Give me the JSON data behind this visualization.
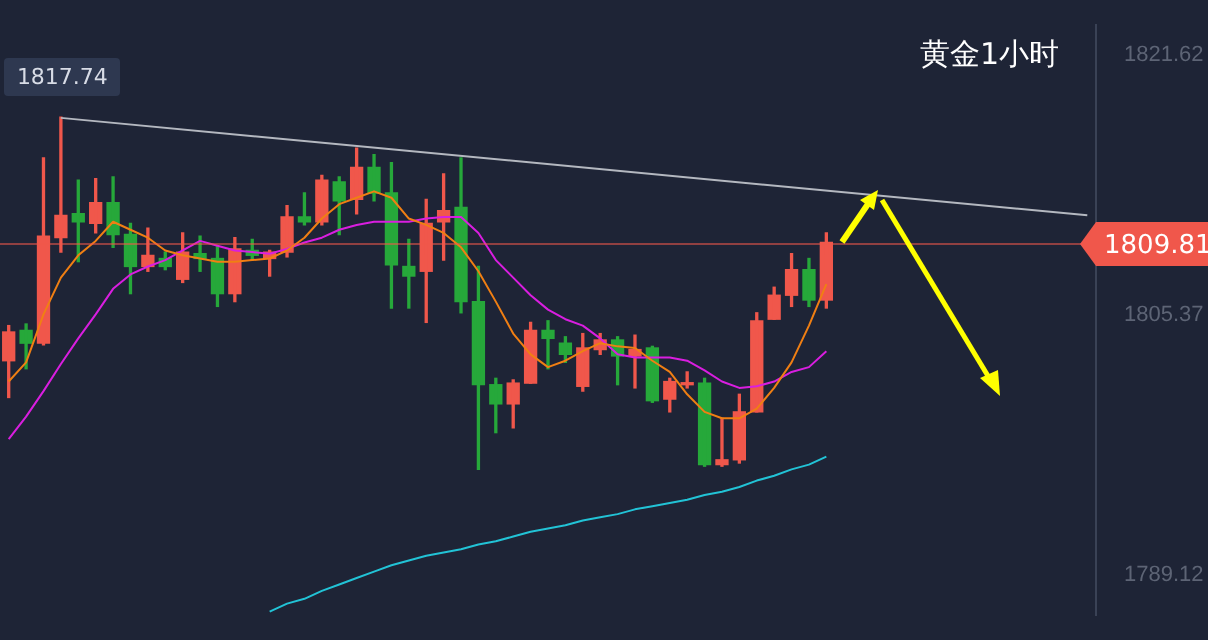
{
  "chart_data": {
    "type": "candlestick",
    "title": "黄金1小时",
    "tick_labels": "y",
    "categories": [
      null,
      null,
      null,
      null,
      null,
      null,
      null,
      null,
      null,
      null,
      null,
      null,
      null,
      null,
      null,
      null,
      null,
      null,
      null,
      null,
      null,
      null,
      null,
      null,
      null,
      null,
      null,
      null,
      null,
      null,
      null,
      null,
      null,
      null,
      null,
      null,
      null,
      null,
      null,
      null,
      null,
      null,
      null,
      null,
      null,
      null,
      null,
      null,
      null,
      null,
      null,
      null,
      null,
      null,
      null,
      null,
      null,
      null,
      null,
      null,
      null,
      null,
      null
    ],
    "ohlc": [
      [
        1802.5,
        1804.7,
        1800.2,
        1804.3
      ],
      [
        1804.4,
        1804.8,
        1802.0,
        1803.6
      ],
      [
        1803.6,
        1815.2,
        1803.5,
        1810.3
      ],
      [
        1810.2,
        1817.74,
        1809.3,
        1811.6
      ],
      [
        1811.7,
        1813.8,
        1808.7,
        1811.2
      ],
      [
        1811.1,
        1813.9,
        1810.5,
        1812.4
      ],
      [
        1812.4,
        1814.0,
        1809.6,
        1810.4
      ],
      [
        1810.4,
        1811.1,
        1806.7,
        1808.4
      ],
      [
        1808.4,
        1810.8,
        1808.1,
        1809.1
      ],
      [
        1808.9,
        1809.3,
        1808.2,
        1808.4
      ],
      [
        1807.6,
        1810.5,
        1807.4,
        1809.3
      ],
      [
        1809.2,
        1810.3,
        1808.1,
        1808.9
      ],
      [
        1808.9,
        1809.7,
        1805.9,
        1806.7
      ],
      [
        1806.7,
        1810.2,
        1806.2,
        1809.5
      ],
      [
        1809.4,
        1810.1,
        1808.8,
        1809.1
      ],
      [
        1808.9,
        1809.4,
        1807.8,
        1809.3
      ],
      [
        1809.3,
        1812.2,
        1809.0,
        1811.5
      ],
      [
        1811.5,
        1813.0,
        1811.0,
        1811.2
      ],
      [
        1811.2,
        1814.1,
        1811.0,
        1813.8
      ],
      [
        1813.7,
        1814.0,
        1810.4,
        1812.5
      ],
      [
        1812.6,
        1815.8,
        1811.7,
        1814.6
      ],
      [
        1814.6,
        1815.4,
        1812.5,
        1813.0
      ],
      [
        1813.0,
        1814.9,
        1805.8,
        1808.5
      ],
      [
        1808.4,
        1810.1,
        1805.8,
        1807.8
      ],
      [
        1808.1,
        1812.6,
        1804.9,
        1811.1
      ],
      [
        1811.2,
        1814.2,
        1808.8,
        1811.9
      ],
      [
        1812.1,
        1815.2,
        1805.5,
        1806.2
      ],
      [
        1806.2,
        1808.4,
        1795.7,
        1801.0
      ],
      [
        1801.0,
        1801.4,
        1798.0,
        1799.8
      ],
      [
        1799.8,
        1801.3,
        1798.3,
        1801.1
      ],
      [
        1801.1,
        1804.9,
        1801.1,
        1804.4
      ],
      [
        1804.4,
        1805.0,
        1802.0,
        1803.9
      ],
      [
        1803.6,
        1804.0,
        1802.4,
        1802.9
      ],
      [
        1800.9,
        1804.2,
        1800.6,
        1803.3
      ],
      [
        1803.2,
        1804.2,
        1802.9,
        1803.8
      ],
      [
        1803.8,
        1804.0,
        1801.0,
        1802.8
      ],
      [
        1802.8,
        1804.1,
        1800.8,
        1803.2
      ],
      [
        1803.3,
        1803.4,
        1799.9,
        1800.0
      ],
      [
        1800.1,
        1801.4,
        1799.3,
        1801.2
      ],
      [
        1801.0,
        1801.8,
        1800.8,
        1801.1
      ],
      [
        1801.1,
        1801.4,
        1795.9,
        1796.0
      ],
      [
        1796.0,
        1798.9,
        1795.9,
        1796.3
      ],
      [
        1796.3,
        1800.4,
        1796.1,
        1799.3
      ],
      [
        1799.3,
        1805.5,
        1799.3,
        1805.0
      ],
      [
        1805.1,
        1807.1,
        1805.1,
        1806.6
      ],
      [
        1806.6,
        1809.2,
        1805.9,
        1808.2
      ],
      [
        1808.2,
        1808.9,
        1805.9,
        1806.3
      ],
      [
        1806.3,
        1810.5,
        1805.8,
        1809.9
      ],
      null,
      null,
      null,
      null,
      null,
      null,
      null,
      null,
      null,
      null,
      null,
      null,
      null,
      null,
      null
    ],
    "colors": [
      "#f0574b",
      "#26a83a",
      "#f0574b",
      "#f0574b",
      "#26a83a",
      "#f0574b",
      "#26a83a",
      "#26a83a",
      "#f0574b",
      "#26a83a",
      "#f0574b",
      "#26a83a",
      "#26a83a",
      "#f0574b",
      "#26a83a",
      "#f0574b",
      "#f0574b",
      "#26a83a",
      "#f0574b",
      "#26a83a",
      "#f0574b",
      "#26a83a",
      "#26a83a",
      "#26a83a",
      "#f0574b",
      "#f0574b",
      "#26a83a",
      "#26a83a",
      "#26a83a",
      "#f0574b",
      "#f0574b",
      "#26a83a",
      "#26a83a",
      "#f0574b",
      "#f0574b",
      "#26a83a",
      "#f0574b",
      "#26a83a",
      "#f0574b",
      "#f0574b",
      "#26a83a",
      "#f0574b",
      "#f0574b",
      "#f0574b",
      "#f0574b",
      "#f0574b",
      "#26a83a",
      "#f0574b",
      null,
      null,
      null,
      null,
      null,
      null,
      null,
      null,
      null,
      null,
      null,
      null,
      null,
      null,
      null
    ],
    "series": [
      {
        "type": "line",
        "color": "#f07f13",
        "values": [
          1801.2,
          1802.4,
          1805.4,
          1807.7,
          1809.1,
          1810.0,
          1811.2,
          1810.7,
          1810.2,
          1809.4,
          1809.1,
          1808.9,
          1808.7,
          1808.7,
          1808.8,
          1808.9,
          1809.4,
          1810.2,
          1811.4,
          1812.3,
          1812.7,
          1813.1,
          1812.7,
          1811.4,
          1811.0,
          1810.5,
          1809.6,
          1808.1,
          1806.2,
          1804.2,
          1802.9,
          1802.1,
          1802.5,
          1803.1,
          1803.6,
          1803.4,
          1803.3,
          1802.5,
          1801.8,
          1800.4,
          1799.3,
          1798.9,
          1798.9,
          1799.5,
          1800.8,
          1802.4,
          1804.7,
          1807.3,
          null,
          null,
          null,
          null,
          null,
          null,
          null,
          null,
          null,
          null,
          null,
          null,
          null,
          null,
          null
        ]
      },
      {
        "type": "line",
        "color": "#d91ee0",
        "values": [
          1797.6,
          1799.0,
          1800.6,
          1802.3,
          1803.9,
          1805.4,
          1807.0,
          1807.9,
          1808.4,
          1808.8,
          1809.4,
          1810.0,
          1809.7,
          1809.4,
          1809.3,
          1809.2,
          1809.5,
          1809.9,
          1810.2,
          1810.7,
          1811.0,
          1811.2,
          1811.2,
          1811.2,
          1811.4,
          1811.5,
          1811.5,
          1810.5,
          1808.8,
          1807.7,
          1806.6,
          1805.7,
          1805.1,
          1804.7,
          1803.9,
          1802.9,
          1802.7,
          1802.7,
          1802.7,
          1802.5,
          1801.9,
          1801.2,
          1800.8,
          1800.9,
          1801.2,
          1801.8,
          1802.1,
          1803.1,
          null,
          null,
          null,
          null,
          null,
          null,
          null,
          null,
          null,
          null,
          null,
          null,
          null,
          null,
          null
        ]
      },
      {
        "type": "line",
        "color": "#22c3d6",
        "values": [
          null,
          null,
          null,
          null,
          null,
          null,
          null,
          null,
          null,
          null,
          null,
          null,
          null,
          null,
          null,
          1786.8,
          1787.3,
          1787.6,
          1788.1,
          1788.5,
          1788.9,
          1789.3,
          1789.7,
          1790.0,
          1790.3,
          1790.5,
          1790.7,
          1791.0,
          1791.2,
          1791.5,
          1791.8,
          1792.0,
          1792.2,
          1792.5,
          1792.7,
          1792.9,
          1793.2,
          1793.4,
          1793.6,
          1793.8,
          1794.1,
          1794.3,
          1794.6,
          1795.0,
          1795.3,
          1795.7,
          1796.0,
          1796.5,
          null,
          null,
          null,
          null,
          null,
          null,
          null,
          null,
          null,
          null,
          null,
          null,
          null,
          null,
          null
        ]
      },
      {
        "type": "line",
        "color": "#b4b8c0",
        "values": [
          null,
          null,
          null,
          1817.7,
          null,
          null,
          null,
          null,
          null,
          null,
          null,
          null,
          null,
          null,
          null,
          null,
          null,
          null,
          null,
          null,
          null,
          null,
          null,
          null,
          null,
          null,
          null,
          null,
          null,
          null,
          null,
          null,
          null,
          null,
          null,
          null,
          null,
          null,
          null,
          null,
          null,
          null,
          null,
          null,
          null,
          null,
          null,
          null,
          null,
          null,
          null,
          null,
          null,
          null,
          null,
          null,
          null,
          null,
          null,
          null,
          null,
          null,
          1811.6
        ]
      }
    ],
    "ylim": [
      1786.6,
      1823.5
    ],
    "yticks": [
      1821.62,
      1805.37,
      1789.12
    ],
    "ref_lines": [
      {
        "axis": "y",
        "value": 1809.81,
        "label": "1809.81",
        "color": "#f0574b"
      }
    ],
    "annotations": [
      {
        "text": "1817.74",
        "y": 1817.74
      }
    ]
  }
}
